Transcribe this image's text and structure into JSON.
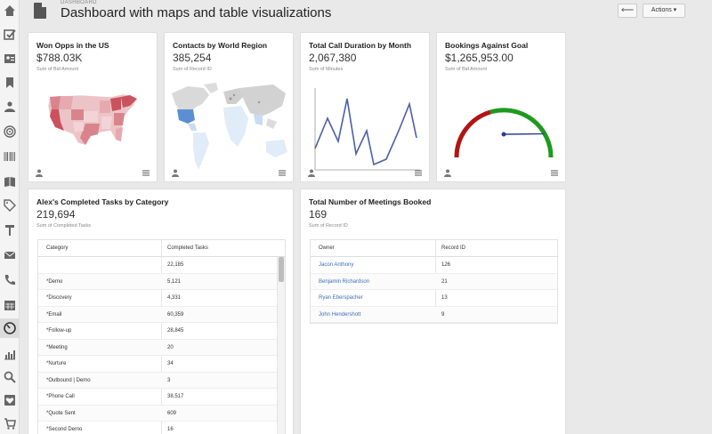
{
  "header": {
    "breadcrumb": "DASHBOARD",
    "title": "Dashboard with maps and table visualizations",
    "back_label": "⟵",
    "actions_label": "Actions ▾"
  },
  "sidebar": {
    "icons": [
      "home-icon",
      "checkbox-icon",
      "contact-card-icon",
      "bookmark-icon",
      "users-icon",
      "target-icon",
      "barcode-icon",
      "book-icon",
      "tag-icon",
      "hammer-icon",
      "mail-icon",
      "phone-icon",
      "calendar-icon",
      "dashboard-gauge-icon",
      "bar-chart-icon",
      "search-icon",
      "heart-icon",
      "cart-icon"
    ],
    "active": "dashboard-gauge-icon"
  },
  "cards": {
    "won_opps": {
      "title": "Won Opps in the US",
      "value": "$788.03K",
      "sub": "Sum of Bid Amount"
    },
    "contacts": {
      "title": "Contacts by World Region",
      "value": "385,254",
      "sub": "Sum of Record ID"
    },
    "call_duration": {
      "title": "Total Call Duration by Month",
      "value": "2,067,380",
      "sub": "Sum of Minutes"
    },
    "bookings": {
      "title": "Bookings Against Goal",
      "value": "$1,265,953.00",
      "sub": "Sum of Bid Amount"
    },
    "tasks": {
      "title": "Alex's Completed Tasks by Category",
      "value": "219,694",
      "sub": "Sum of Completed Tasks",
      "columns": [
        "Category",
        "Completed Tasks"
      ],
      "rows": [
        [
          "",
          "22,185"
        ],
        [
          "*Demo",
          "5,121"
        ],
        [
          "*Discovery",
          "4,331"
        ],
        [
          "*Email",
          "60,359"
        ],
        [
          "*Follow-up",
          "28,845"
        ],
        [
          "*Meeting",
          "20"
        ],
        [
          "*Nurture",
          "34"
        ],
        [
          "*Outbound | Demo",
          "3"
        ],
        [
          "*Phone Call",
          "38,517"
        ],
        [
          "*Quote Sent",
          "609"
        ],
        [
          "*Second Demo",
          "16"
        ]
      ]
    },
    "meetings": {
      "title": "Total Number of Meetings Booked",
      "value": "169",
      "sub": "Sum of Record ID",
      "columns": [
        "Owner",
        "Record ID"
      ],
      "rows": [
        [
          "Jacon Anthony",
          "126"
        ],
        [
          "Benjamin Richardson",
          "21"
        ],
        [
          "Ryan Eberspacher",
          "13"
        ],
        [
          "John Hendershott",
          "9"
        ]
      ]
    }
  },
  "gauge": {
    "fraction": 0.97
  },
  "colors": {
    "accent_link": "#3a6eb5",
    "line": "#4a5fa8",
    "gauge_red": "#b01515",
    "gauge_green": "#1f9a1f",
    "map_red": "#d9848c",
    "map_blue": "#5b8fd1"
  }
}
